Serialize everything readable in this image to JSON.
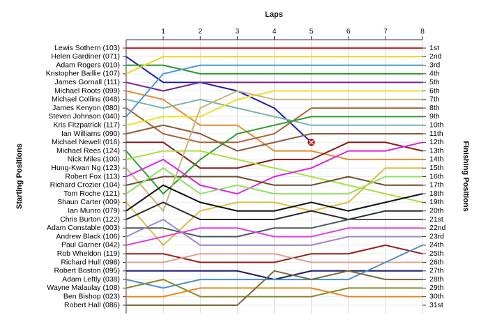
{
  "chart_data": {
    "type": "line",
    "title": "Laps",
    "y_label_left": "Starting Positions",
    "y_label_right": "Finishing Positions",
    "x": [
      0,
      1,
      2,
      3,
      4,
      5,
      6,
      7,
      8
    ],
    "xlim": [
      0,
      8
    ],
    "xticks": [
      1,
      2,
      3,
      4,
      5,
      6,
      7,
      8
    ],
    "ylim": [
      1,
      31
    ],
    "yticks": [
      1,
      2,
      3,
      4,
      5,
      6,
      7,
      8,
      9,
      10,
      11,
      12,
      13,
      14,
      15,
      16,
      17,
      18,
      19,
      20,
      21,
      22,
      23,
      24,
      25,
      26,
      27,
      28,
      29,
      30,
      31
    ],
    "finish_labels": [
      "1st",
      "2nd",
      "3rd",
      "4th",
      "5th",
      "6th",
      "7th",
      "8th",
      "9th",
      "10th",
      "11th",
      "12th",
      "13th",
      "14th",
      "15th",
      "16th",
      "17th",
      "18th",
      "19th",
      "20th",
      "21st",
      "22nd",
      "23rd",
      "24th",
      "25th",
      "26th",
      "27th",
      "28th",
      "29th",
      "30th",
      "31st"
    ],
    "grid": true,
    "series": [
      {
        "name": "Lewis Sothern (103)",
        "color": "#d81e1e",
        "values": [
          1,
          1,
          1,
          1,
          1,
          1,
          1,
          1,
          1
        ]
      },
      {
        "name": "Helen Gardiner (071)",
        "color": "#1c1cb4",
        "values": [
          2,
          5,
          5,
          6,
          8,
          12,
          null,
          null,
          null
        ]
      },
      {
        "name": "Adam Rogers (010)",
        "color": "#2a9a2a",
        "values": [
          3,
          3,
          4,
          4,
          4,
          4,
          4,
          4,
          4
        ]
      },
      {
        "name": "Kristopher Baillie (107)",
        "color": "#e6d81e",
        "values": [
          4,
          2,
          2,
          2,
          2,
          2,
          2,
          2,
          2
        ]
      },
      {
        "name": "James Gornall (111)",
        "color": "#7a1e8a",
        "values": [
          5,
          6,
          5,
          5,
          5,
          5,
          5,
          5,
          5
        ]
      },
      {
        "name": "Michael Roots (099)",
        "color": "#e68a2e",
        "values": [
          6,
          7,
          10,
          10,
          13,
          13,
          14,
          14,
          14
        ]
      },
      {
        "name": "Michael Collins (048)",
        "color": "#7ab4a8",
        "values": [
          7,
          8,
          7,
          8,
          9,
          10,
          10,
          10,
          10
        ]
      },
      {
        "name": "James Kenyon (080)",
        "color": "#a8643a",
        "values": [
          8,
          11,
          12,
          12,
          11,
          8,
          8,
          8,
          8
        ]
      },
      {
        "name": "Steven Johnson (040)",
        "color": "#4a9ad8",
        "values": [
          9,
          4,
          3,
          3,
          3,
          3,
          3,
          3,
          3
        ]
      },
      {
        "name": "Kris Fitzpatrick (117)",
        "color": "#f0e020",
        "values": [
          10,
          9,
          9,
          7,
          6,
          6,
          6,
          6,
          6
        ]
      },
      {
        "name": "Ian Williams (090)",
        "color": "#8a5a3a",
        "values": [
          11,
          10,
          11,
          13,
          12,
          11,
          11,
          11,
          11
        ]
      },
      {
        "name": "Michael Newell (016)",
        "color": "#8a1a1a",
        "values": [
          12,
          12,
          15,
          15,
          14,
          14,
          12,
          12,
          13
        ]
      },
      {
        "name": "Michael Rees (124)",
        "color": "#2aa02a",
        "values": [
          13,
          18,
          14,
          11,
          10,
          9,
          9,
          9,
          9
        ]
      },
      {
        "name": "Nick Miles (100)",
        "color": "#a8e040",
        "values": [
          14,
          13,
          13,
          14,
          15,
          16,
          17,
          18,
          19
        ]
      },
      {
        "name": "Hung-Kwan Ng (123)",
        "color": "#c8b478",
        "values": [
          15,
          20,
          8,
          6,
          7,
          7,
          7,
          7,
          7
        ]
      },
      {
        "name": "Robert Fox (113)",
        "color": "#e020e0",
        "values": [
          16,
          14,
          17,
          18,
          16,
          15,
          13,
          13,
          12
        ]
      },
      {
        "name": "Richard Crozier (104)",
        "color": "#6a4a2a",
        "values": [
          17,
          16,
          16,
          16,
          17,
          17,
          16,
          17,
          17
        ]
      },
      {
        "name": "Tom Roche (121)",
        "color": "#90e060",
        "values": [
          18,
          15,
          18,
          17,
          18,
          18,
          18,
          16,
          16
        ]
      },
      {
        "name": "Shaun Carter (009)",
        "color": "#d8c040",
        "values": [
          19,
          24,
          20,
          19,
          19,
          20,
          19,
          15,
          15
        ]
      },
      {
        "name": "Ian Munro (079)",
        "color": "#101010",
        "values": [
          20,
          17,
          19,
          20,
          20,
          19,
          20,
          19,
          18
        ]
      },
      {
        "name": "Chris Burton (122)",
        "color": "#2a2a2a",
        "values": [
          21,
          19,
          21,
          21,
          21,
          20,
          21,
          20,
          20
        ]
      },
      {
        "name": "Adam Constable (003)",
        "color": "#4a5a5a",
        "values": [
          22,
          22,
          23,
          23,
          22,
          22,
          21,
          21,
          21
        ]
      },
      {
        "name": "Andrew Black (106)",
        "color": "#9a88c8",
        "values": [
          23,
          21,
          24,
          24,
          24,
          24,
          23,
          23,
          23
        ]
      },
      {
        "name": "Paul Garner (042)",
        "color": "#e040e0",
        "values": [
          24,
          23,
          22,
          22,
          23,
          23,
          22,
          22,
          22
        ]
      },
      {
        "name": "Rob Wheldon (119)",
        "color": "#9a1a1a",
        "values": [
          25,
          25,
          26,
          26,
          26,
          25,
          25,
          24,
          25
        ]
      },
      {
        "name": "Richard Hull (098)",
        "color": "#e0a090",
        "values": [
          26,
          26,
          25,
          25,
          25,
          26,
          26,
          26,
          26
        ]
      },
      {
        "name": "Robert Boston (095)",
        "color": "#1a1a6a",
        "values": [
          27,
          27,
          27,
          27,
          28,
          27,
          27,
          27,
          27
        ]
      },
      {
        "name": "Adam Leftly (038)",
        "color": "#4a90d0",
        "values": [
          28,
          29,
          28,
          28,
          28,
          28,
          28,
          26,
          24
        ]
      },
      {
        "name": "Wayne Malaulay (108)",
        "color": "#8a8a2a",
        "values": [
          29,
          28,
          30,
          30,
          30,
          30,
          29,
          29,
          29
        ]
      },
      {
        "name": "Ben Bishop (023)",
        "color": "#e68a20",
        "values": [
          30,
          30,
          29,
          29,
          29,
          29,
          30,
          30,
          30
        ]
      },
      {
        "name": "Robert Hall (086)",
        "color": "#7a6a3a",
        "values": [
          31,
          31,
          31,
          31,
          27,
          28,
          27,
          28,
          28
        ]
      }
    ]
  }
}
